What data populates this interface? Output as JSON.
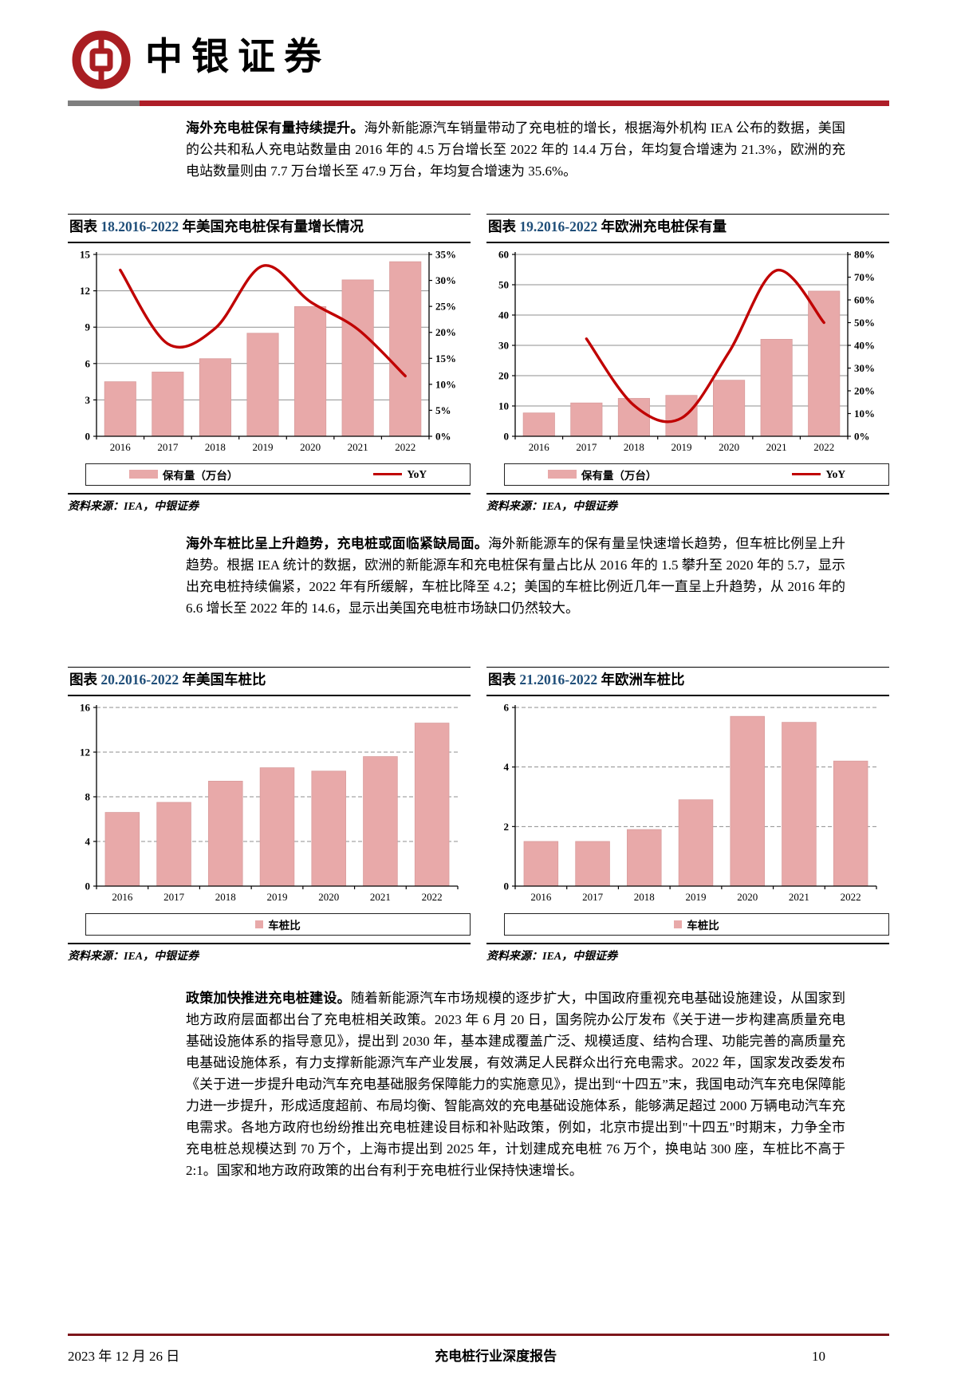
{
  "header": {
    "brand": "中银证券"
  },
  "paragraphs": {
    "p1_bold": "海外充电桩保有量持续提升。",
    "p1_text": "海外新能源汽车销量带动了充电桩的增长，根据海外机构 IEA 公布的数据，美国的公共和私人充电站数量由 2016 年的 4.5 万台增长至 2022 年的 14.4 万台，年均复合增速为 21.3%，欧洲的充电站数量则由 7.7 万台增长至 47.9 万台，年均复合增速为 35.6%。",
    "p2_bold": "海外车桩比呈上升趋势，充电桩或面临紧缺局面。",
    "p2_text": "海外新能源车的保有量呈快速增长趋势，但车桩比例呈上升趋势。根据 IEA 统计的数据，欧洲的新能源车和充电桩保有量占比从 2016 年的 1.5 攀升至 2020 年的 5.7，显示出充电桩持续偏紧，2022 年有所缓解，车桩比降至 4.2；美国的车桩比例近几年一直呈上升趋势，从 2016 年的 6.6 增长至 2022 年的 14.6，显示出美国充电桩市场缺口仍然较大。",
    "p3_bold": "政策加快推进充电桩建设。",
    "p3_text": "随着新能源汽车市场规模的逐步扩大，中国政府重视充电基础设施建设，从国家到地方政府层面都出台了充电桩相关政策。2023 年 6 月 20 日，国务院办公厅发布《关于进一步构建高质量充电基础设施体系的指导意见》，提出到 2030 年，基本建成覆盖广泛、规模适度、结构合理、功能完善的高质量充电基础设施体系，有力支撑新能源汽车产业发展，有效满足人民群众出行充电需求。2022 年，国家发改委发布《关于进一步提升电动汽车充电基础服务保障能力的实施意见》，提出到“十四五”末，我国电动汽车充电保障能力进一步提升，形成适度超前、布局均衡、智能高效的充电基础设施体系，能够满足超过 2000 万辆电动汽车充电需求。各地方政府也纷纷推出充电桩建设目标和补贴政策，例如，北京市提出到\"十四五\"时期末，力争全市充电桩总规模达到 70 万个，上海市提出到 2025 年，计划建成充电桩 76 万个，换电站 300 座，车桩比不高于 2:1。国家和地方政府政策的出台有利于充电桩行业保持快速增长。"
  },
  "figures": [
    {
      "title_prefix": "图表 ",
      "title_num": "18.2016-2022",
      "title_rest": " 年美国充电桩保有量增长情况",
      "source": "资料来源：IEA，中银证券"
    },
    {
      "title_prefix": "图表 ",
      "title_num": "19.2016-2022",
      "title_rest": " 年欧洲充电桩保有量",
      "source": "资料来源：IEA，中银证券"
    },
    {
      "title_prefix": "图表 ",
      "title_num": "20.2016-2022",
      "title_rest": " 年美国车桩比",
      "source": "资料来源：IEA，中银证券"
    },
    {
      "title_prefix": "图表 ",
      "title_num": "21.2016-2022",
      "title_rest": " 年欧洲车桩比",
      "source": "资料来源：IEA，中银证券"
    }
  ],
  "chart_data": [
    {
      "type": "bar",
      "title": "2016-2022 年美国充电桩保有量增长情况",
      "categories": [
        "2016",
        "2017",
        "2018",
        "2019",
        "2020",
        "2021",
        "2022"
      ],
      "series": [
        {
          "name": "保有量（万台）",
          "type": "bar",
          "values": [
            4.5,
            5.3,
            6.4,
            8.5,
            10.7,
            12.9,
            14.4
          ]
        },
        {
          "name": "YoY",
          "type": "line",
          "axis": "right",
          "values": [
            32,
            17.8,
            20.8,
            32.8,
            25.9,
            20.6,
            11.6
          ]
        }
      ],
      "xlabel": "",
      "ylabel": "",
      "ylim": [
        0,
        15
      ],
      "ystep": 3,
      "right_ylim": [
        0,
        35
      ],
      "right_ystep": 5,
      "right_format": "percent",
      "grid": "solid",
      "legend_position": "bottom"
    },
    {
      "type": "bar",
      "title": "2016-2022 年欧洲充电桩保有量",
      "categories": [
        "2016",
        "2017",
        "2018",
        "2019",
        "2020",
        "2021",
        "2022"
      ],
      "series": [
        {
          "name": "保有量（万台）",
          "type": "bar",
          "values": [
            7.7,
            11.0,
            12.5,
            13.5,
            18.5,
            32.0,
            47.9
          ]
        },
        {
          "name": "YoY",
          "type": "line",
          "axis": "right",
          "values": [
            null,
            42.9,
            13.6,
            8.0,
            37.0,
            73.0,
            50.0
          ]
        }
      ],
      "xlabel": "",
      "ylabel": "",
      "ylim": [
        0,
        60
      ],
      "ystep": 10,
      "right_ylim": [
        0,
        80
      ],
      "right_ystep": 10,
      "right_format": "percent",
      "grid": "solid",
      "legend_position": "bottom"
    },
    {
      "type": "bar",
      "title": "2016-2022 年美国车桩比",
      "categories": [
        "2016",
        "2017",
        "2018",
        "2019",
        "2020",
        "2021",
        "2022"
      ],
      "series": [
        {
          "name": "车桩比",
          "type": "bar",
          "values": [
            6.6,
            7.5,
            9.4,
            10.6,
            10.3,
            11.6,
            14.6
          ]
        }
      ],
      "xlabel": "",
      "ylabel": "",
      "ylim": [
        0,
        16
      ],
      "ystep": 4,
      "grid": "dashed",
      "legend_position": "bottom"
    },
    {
      "type": "bar",
      "title": "2016-2022 年欧洲车桩比",
      "categories": [
        "2016",
        "2017",
        "2018",
        "2019",
        "2020",
        "2021",
        "2022"
      ],
      "series": [
        {
          "name": "车桩比",
          "type": "bar",
          "values": [
            1.5,
            1.5,
            1.9,
            2.9,
            5.7,
            5.5,
            4.2
          ]
        }
      ],
      "xlabel": "",
      "ylabel": "",
      "ylim": [
        0,
        6
      ],
      "ystep": 2,
      "grid": "dashed",
      "legend_position": "bottom"
    }
  ],
  "footer": {
    "date": "2023 年 12 月 26 日",
    "report": "充电桩行业深度报告",
    "page": "10"
  },
  "colors": {
    "bar": "#E8A9A9",
    "bar_edge": "#D99C9C",
    "line": "#C00000",
    "accent_red": "#AE1E28",
    "accent_gray": "#7f7f7f",
    "title_blue": "#1F4E79",
    "footer_rule": "#7D161B"
  }
}
